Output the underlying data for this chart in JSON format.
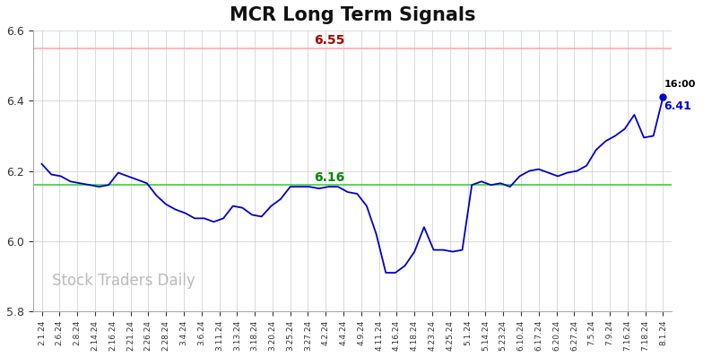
{
  "title": "MCR Long Term Signals",
  "watermark": "Stock Traders Daily",
  "red_line": 6.55,
  "green_line": 6.16,
  "red_line_label": "6.55",
  "green_line_label": "6.16",
  "last_label": "16:00",
  "last_value": "6.41",
  "ylim": [
    5.8,
    6.6
  ],
  "yticks": [
    5.8,
    6.0,
    6.2,
    6.4,
    6.6
  ],
  "x_labels": [
    "2.1.24",
    "2.6.24",
    "2.8.24",
    "2.14.24",
    "2.16.24",
    "2.21.24",
    "2.26.24",
    "2.28.24",
    "3.4.24",
    "3.6.24",
    "3.11.24",
    "3.13.24",
    "3.18.24",
    "3.20.24",
    "3.25.24",
    "3.27.24",
    "4.2.24",
    "4.4.24",
    "4.9.24",
    "4.11.24",
    "4.16.24",
    "4.18.24",
    "4.23.24",
    "4.25.24",
    "5.1.24",
    "5.14.24",
    "5.23.24",
    "6.10.24",
    "6.17.24",
    "6.20.24",
    "6.27.24",
    "7.5.24",
    "7.9.24",
    "7.16.24",
    "7.18.24",
    "8.1.24"
  ],
  "y_values": [
    6.22,
    6.19,
    6.185,
    6.17,
    6.165,
    6.16,
    6.155,
    6.16,
    6.195,
    6.185,
    6.175,
    6.165,
    6.13,
    6.105,
    6.09,
    6.08,
    6.065,
    6.065,
    6.055,
    6.065,
    6.1,
    6.095,
    6.075,
    6.07,
    6.1,
    6.12,
    6.155,
    6.155,
    6.155,
    6.15,
    6.155,
    6.155,
    6.14,
    6.135,
    6.1,
    6.02,
    5.91,
    5.91,
    5.93,
    5.97,
    6.04,
    5.975,
    5.975,
    5.97,
    5.975,
    6.16,
    6.17,
    6.16,
    6.165,
    6.155,
    6.185,
    6.2,
    6.205,
    6.195,
    6.185,
    6.195,
    6.2,
    6.215,
    6.26,
    6.285,
    6.3,
    6.32,
    6.36,
    6.295,
    6.3,
    6.41
  ],
  "line_color": "#0000cc",
  "red_line_color": "#ffaaaa",
  "red_label_color": "#aa0000",
  "green_line_color": "#44cc44",
  "green_label_color": "#008800",
  "background_color": "#ffffff",
  "grid_color": "#cccccc",
  "title_fontsize": 15,
  "watermark_color": "#bbbbbb",
  "watermark_fontsize": 12
}
